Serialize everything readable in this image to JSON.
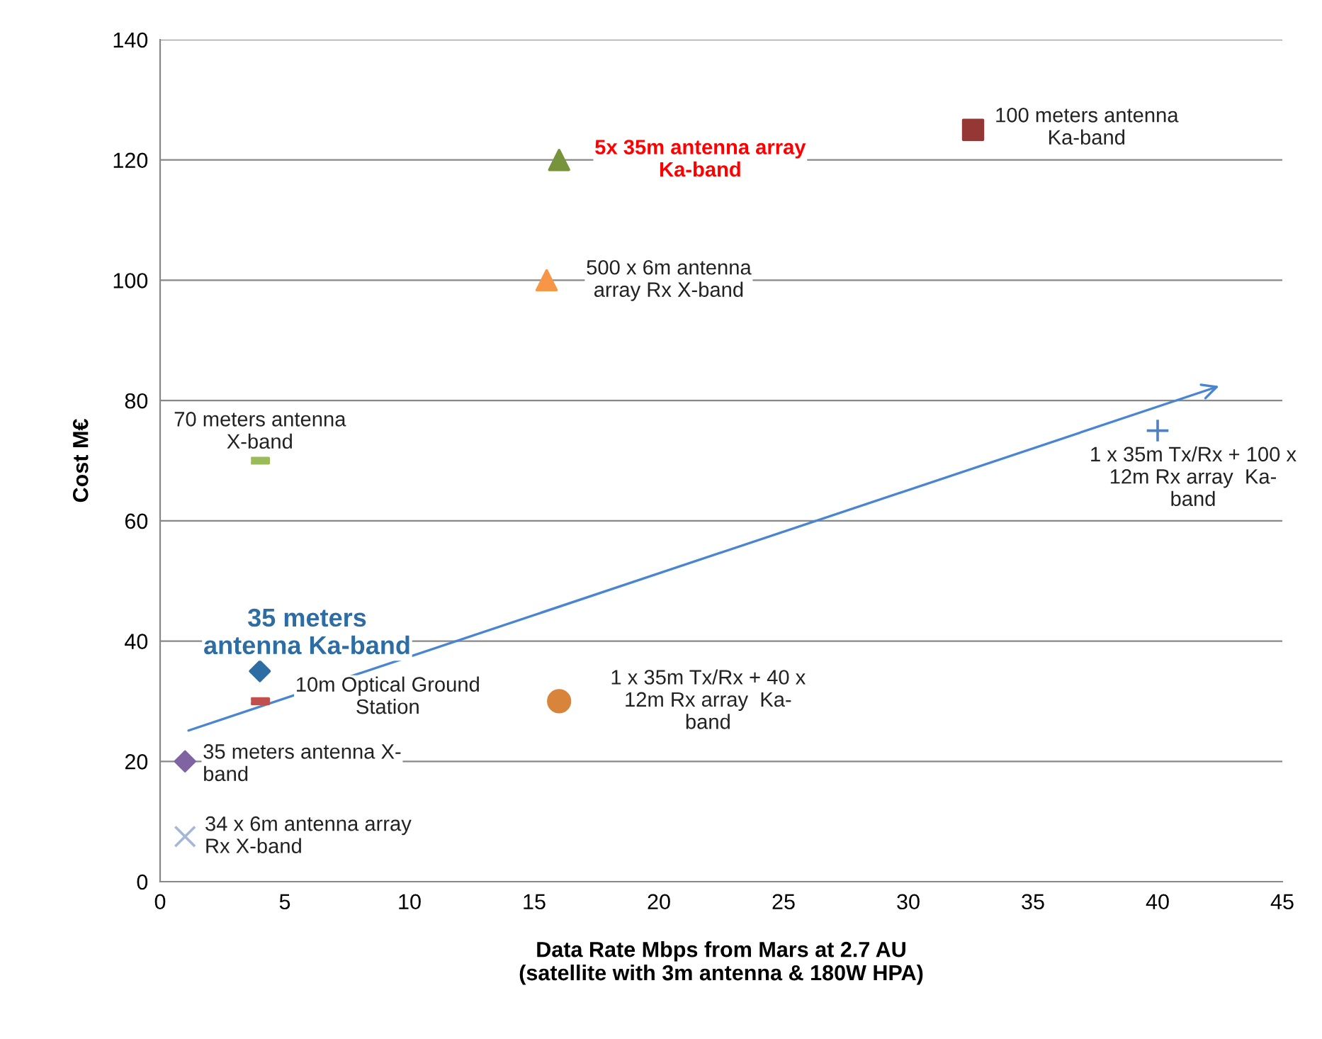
{
  "chart_data": {
    "type": "scatter",
    "xlabel": "Data Rate Mbps from Mars at 2.7 AU\n(satellite with 3m antenna & 180W HPA)",
    "ylabel": "Cost M€",
    "xlim": [
      0,
      45
    ],
    "xticks": [
      0,
      5,
      10,
      15,
      20,
      25,
      30,
      35,
      40,
      45
    ],
    "ylim": [
      0,
      140
    ],
    "yticks": [
      0,
      20,
      40,
      60,
      80,
      100,
      120,
      140
    ],
    "grid": "y",
    "series": [
      {
        "name": "34 x 6m antenna array\nRx X-band",
        "color": "#a5b6d6",
        "marker": "cross",
        "x": [
          1
        ],
        "values": [
          7.5
        ]
      },
      {
        "name": "35 meters antenna X-\nband",
        "color": "#8064a2",
        "marker": "diamond",
        "x": [
          1
        ],
        "values": [
          20
        ]
      },
      {
        "name": "35 meters\nantenna Ka-band",
        "color": "#2e6da4",
        "marker": "diamond",
        "x": [
          4
        ],
        "values": [
          35
        ]
      },
      {
        "name": "10m Optical Ground\nStation",
        "color": "#c0504d",
        "x": [
          4
        ],
        "values": [
          30
        ]
      },
      {
        "name": "70 meters antenna\nX-band",
        "color": "#9bbb59",
        "x": [
          4
        ],
        "values": [
          70
        ]
      },
      {
        "name": "500 x 6m antenna\narray Rx X-band",
        "color": "#f79646",
        "marker": "triangle",
        "x": [
          15.5
        ],
        "values": [
          100
        ]
      },
      {
        "name": "5x 35m antenna array\nKa-band",
        "color": "#77933c",
        "marker": "triangle",
        "x": [
          16
        ],
        "values": [
          120
        ]
      },
      {
        "name": "1 x 35m Tx/Rx + 40 x\n12m Rx array  Ka-\nband",
        "color": "#d9843b",
        "marker": "circle",
        "x": [
          16
        ],
        "values": [
          30
        ]
      },
      {
        "name": "100 meters antenna\nKa-band",
        "color": "#953735",
        "marker": "square",
        "x": [
          32.6
        ],
        "values": [
          125
        ]
      },
      {
        "name": "1 x 35m Tx/Rx + 100 x\n12m Rx array  Ka-\nband",
        "color": "#4f81bd",
        "marker": "plus",
        "x": [
          40
        ],
        "values": [
          75
        ]
      }
    ]
  }
}
